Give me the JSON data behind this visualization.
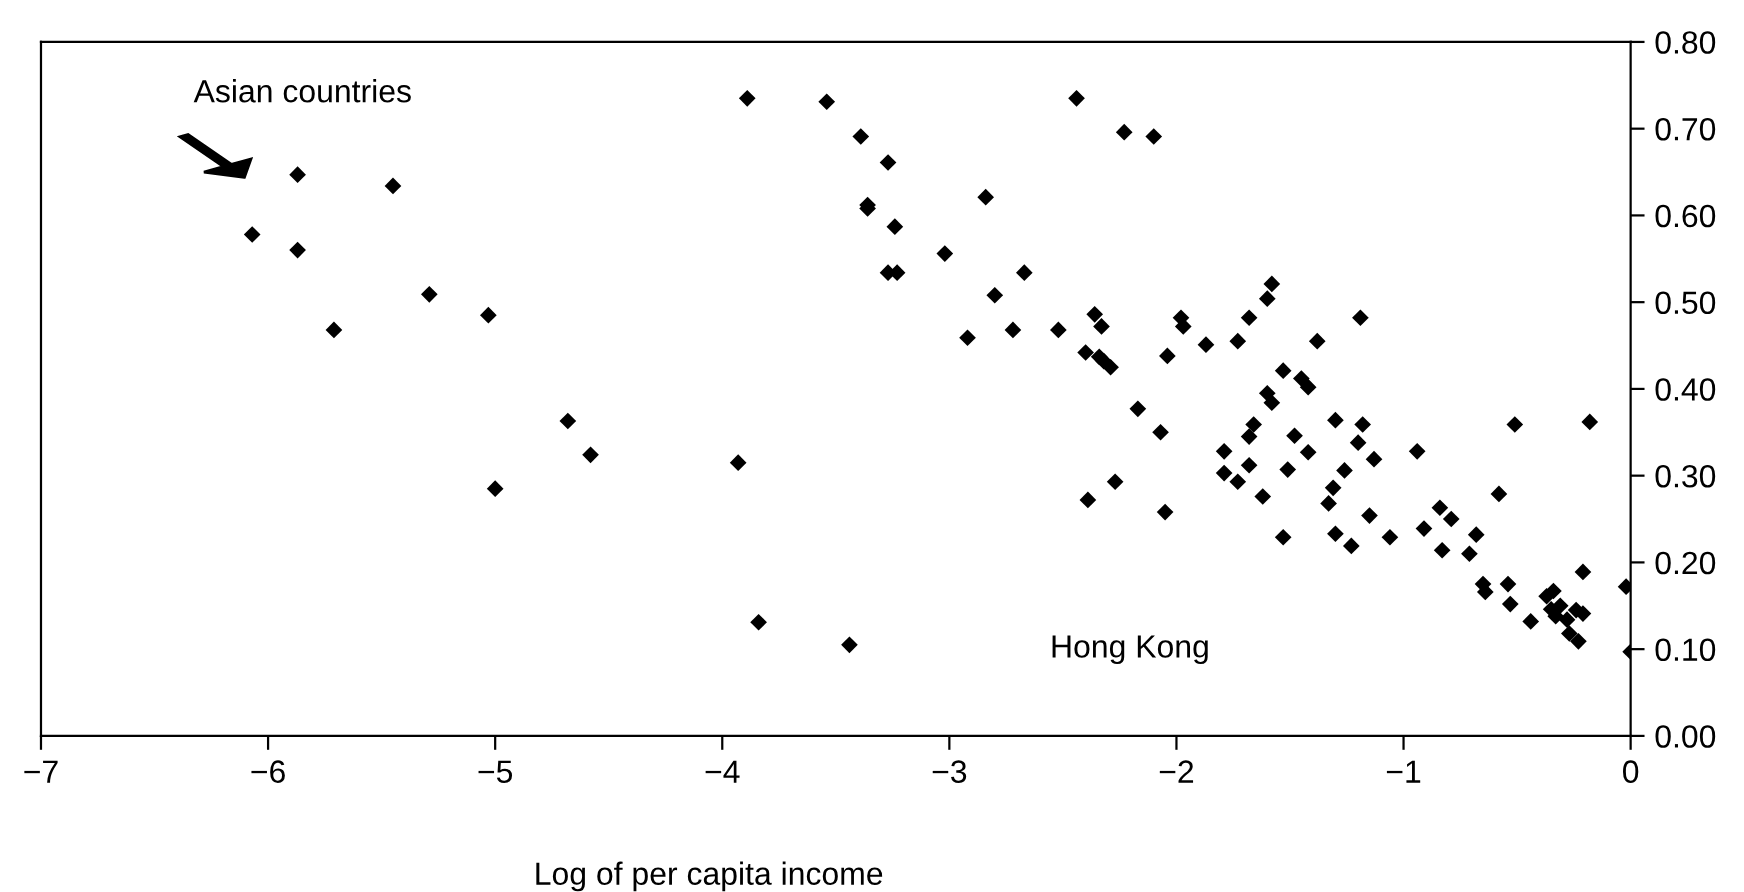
{
  "chart_data": {
    "type": "scatter",
    "xlabel": "Log of per capita income",
    "annotations": [
      "Asian countries",
      "Hong Kong"
    ],
    "xlim": [
      -7,
      0
    ],
    "ylim": [
      0,
      0.8
    ],
    "xticks": [
      {
        "value": -7,
        "label": "−7"
      },
      {
        "value": -6,
        "label": "−6"
      },
      {
        "value": -5,
        "label": "−5"
      },
      {
        "value": -4,
        "label": "−4"
      },
      {
        "value": -3,
        "label": "−3"
      },
      {
        "value": -2,
        "label": "−2"
      },
      {
        "value": -1,
        "label": "−1"
      },
      0
    ],
    "yticks": [
      {
        "value": 0,
        "label": "0.00"
      },
      {
        "value": 0.1,
        "label": "0.10"
      },
      {
        "value": 0.2,
        "label": "0.20"
      },
      {
        "value": 0.3,
        "label": "0.30"
      },
      {
        "value": 0.4,
        "label": "0.40"
      },
      {
        "value": 0.5,
        "label": "0.50"
      },
      {
        "value": 0.6,
        "label": "0.60"
      },
      {
        "value": 0.7,
        "label": "0.70"
      },
      {
        "value": 0.8,
        "label": "0.80"
      }
    ],
    "grid": false,
    "marker": "diamond",
    "series": [
      {
        "color": "#000000",
        "x": [
          -5.87,
          -5.45,
          -6.07,
          -5.87,
          -5.29,
          -5.03,
          -5.71,
          -4.68,
          -4.58,
          -5.0,
          -3.89,
          -3.54,
          -3.39,
          -3.27,
          -3.36,
          -3.36,
          -3.24,
          -3.27,
          -3.23,
          -3.02,
          -2.84,
          -2.67,
          -2.8,
          -2.92,
          -2.72,
          -2.52,
          -2.44,
          -2.23,
          -2.1,
          -2.36,
          -2.33,
          -2.4,
          -2.34,
          -2.32,
          -2.29,
          -1.98,
          -1.97,
          -2.04,
          -2.17,
          -2.07,
          -3.93,
          -2.27,
          -2.39,
          -2.05,
          -3.84,
          -3.44,
          -1.87,
          -1.73,
          -1.68,
          -1.6,
          -1.58,
          -1.38,
          -1.19,
          -1.53,
          -1.6,
          -1.58,
          -1.45,
          -1.42,
          -1.66,
          -1.68,
          -1.79,
          -1.79,
          -1.73,
          -1.68,
          -1.62,
          -1.53,
          -1.48,
          -1.42,
          -1.51,
          -1.3,
          -1.18,
          -1.2,
          -1.13,
          -1.26,
          -1.31,
          -1.33,
          -1.3,
          -1.23,
          -1.15,
          -1.06,
          -0.94,
          -0.91,
          -0.84,
          -0.79,
          -0.83,
          -0.71,
          -0.68,
          -0.58,
          -0.51,
          -0.18,
          -0.65,
          -0.64,
          -0.54,
          -0.53,
          -0.44,
          -0.37,
          -0.34,
          -0.35,
          -0.33,
          -0.31,
          -0.28,
          -0.24,
          -0.21,
          -0.27,
          -0.23,
          -0.21,
          -0.02,
          0.0
        ],
        "values": [
          0.647,
          0.634,
          0.578,
          0.56,
          0.509,
          0.485,
          0.468,
          0.363,
          0.324,
          0.285,
          0.735,
          0.731,
          0.691,
          0.661,
          0.612,
          0.608,
          0.587,
          0.534,
          0.534,
          0.556,
          0.621,
          0.534,
          0.508,
          0.459,
          0.468,
          0.468,
          0.735,
          0.696,
          0.691,
          0.486,
          0.472,
          0.442,
          0.437,
          0.432,
          0.425,
          0.482,
          0.472,
          0.438,
          0.377,
          0.35,
          0.315,
          0.293,
          0.272,
          0.258,
          0.131,
          0.105,
          0.451,
          0.455,
          0.482,
          0.504,
          0.521,
          0.455,
          0.482,
          0.421,
          0.395,
          0.384,
          0.412,
          0.402,
          0.359,
          0.345,
          0.328,
          0.303,
          0.293,
          0.312,
          0.276,
          0.229,
          0.346,
          0.327,
          0.307,
          0.364,
          0.359,
          0.338,
          0.319,
          0.306,
          0.286,
          0.268,
          0.233,
          0.219,
          0.254,
          0.229,
          0.328,
          0.239,
          0.263,
          0.25,
          0.214,
          0.21,
          0.232,
          0.279,
          0.359,
          0.362,
          0.175,
          0.166,
          0.175,
          0.152,
          0.132,
          0.161,
          0.167,
          0.146,
          0.138,
          0.15,
          0.134,
          0.145,
          0.141,
          0.118,
          0.109,
          0.189,
          0.172,
          0.097
        ]
      }
    ]
  }
}
